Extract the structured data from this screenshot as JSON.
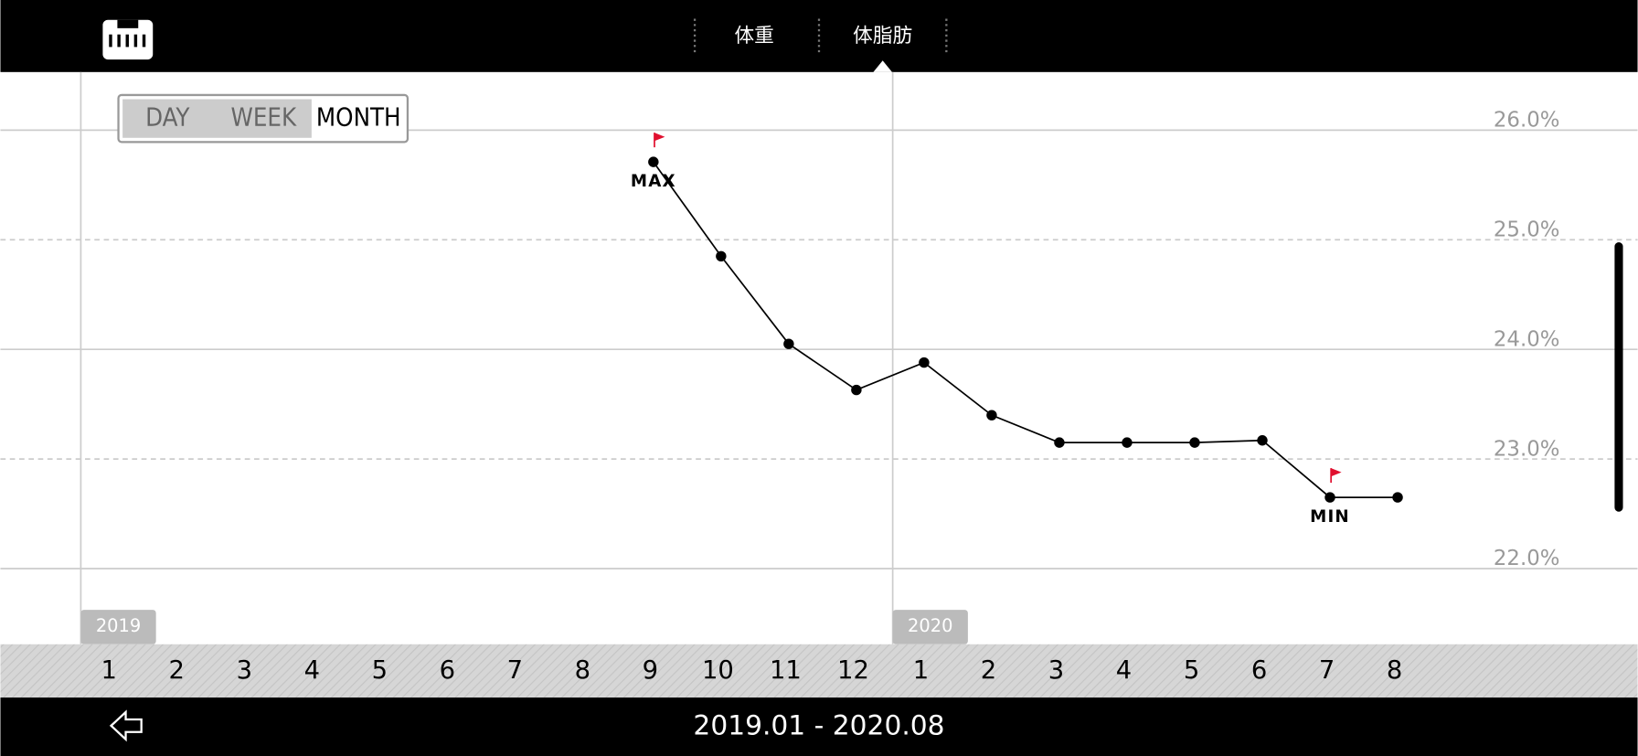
{
  "header": {
    "tabs": [
      "体重",
      "体脂肪"
    ]
  },
  "period_buttons": [
    "DAY",
    "WEEK",
    "MONTH"
  ],
  "chart_data": {
    "type": "line",
    "categories": [
      "1",
      "2",
      "3",
      "4",
      "5",
      "6",
      "7",
      "8",
      "9",
      "10",
      "11",
      "12",
      "1",
      "2",
      "3",
      "4",
      "5",
      "6",
      "7",
      "8"
    ],
    "year_labels": [
      "2019",
      "2020"
    ],
    "values": [
      null,
      null,
      null,
      null,
      null,
      null,
      null,
      null,
      25.71,
      24.85,
      24.05,
      23.63,
      23.88,
      23.4,
      23.15,
      23.15,
      23.15,
      23.17,
      22.65,
      22.65
    ],
    "color": "#000000",
    "ylim": [
      21.31,
      26.53
    ],
    "yticks": [
      {
        "value": 26,
        "label": "26.0%"
      },
      {
        "value": 25,
        "label": "25.0%"
      },
      {
        "value": 24,
        "label": "24.0%"
      },
      {
        "value": 23,
        "label": "23.0%"
      },
      {
        "value": 22,
        "label": "22.0%"
      }
    ],
    "grid": true,
    "annotations": [
      {
        "label": "MAX",
        "index": 8
      },
      {
        "label": "MIN",
        "index": 18
      }
    ]
  },
  "footer": {
    "range": "2019.01 - 2020.08"
  }
}
